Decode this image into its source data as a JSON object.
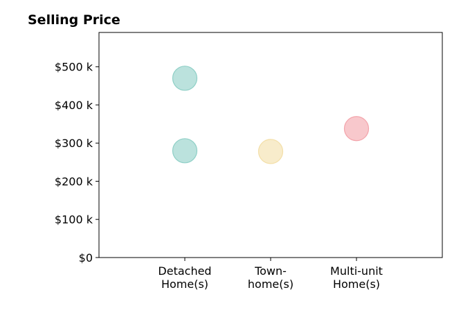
{
  "chart_data": {
    "type": "scatter",
    "title": "Selling Price",
    "xlabel": "",
    "ylabel": "",
    "categories": [
      [
        "Detached",
        "Home(s)"
      ],
      [
        "Town-",
        "home(s)"
      ],
      [
        "Multi-unit",
        "Home(s)"
      ]
    ],
    "y_ticks": [
      0,
      100,
      200,
      300,
      400,
      500
    ],
    "y_tick_labels": [
      "$0",
      "$100 k",
      "$200 k",
      "$300 k",
      "$400 k",
      "$500 k"
    ],
    "ylim": [
      0,
      590
    ],
    "grid": false,
    "legend": "none",
    "points": [
      {
        "category": 0,
        "value": 470,
        "color": "#8ecfc6"
      },
      {
        "category": 0,
        "value": 280,
        "color": "#8ecfc6"
      },
      {
        "category": 1,
        "value": 278,
        "color": "#f3dfa8"
      },
      {
        "category": 2,
        "value": 338,
        "color": "#f3a3aa"
      }
    ]
  }
}
